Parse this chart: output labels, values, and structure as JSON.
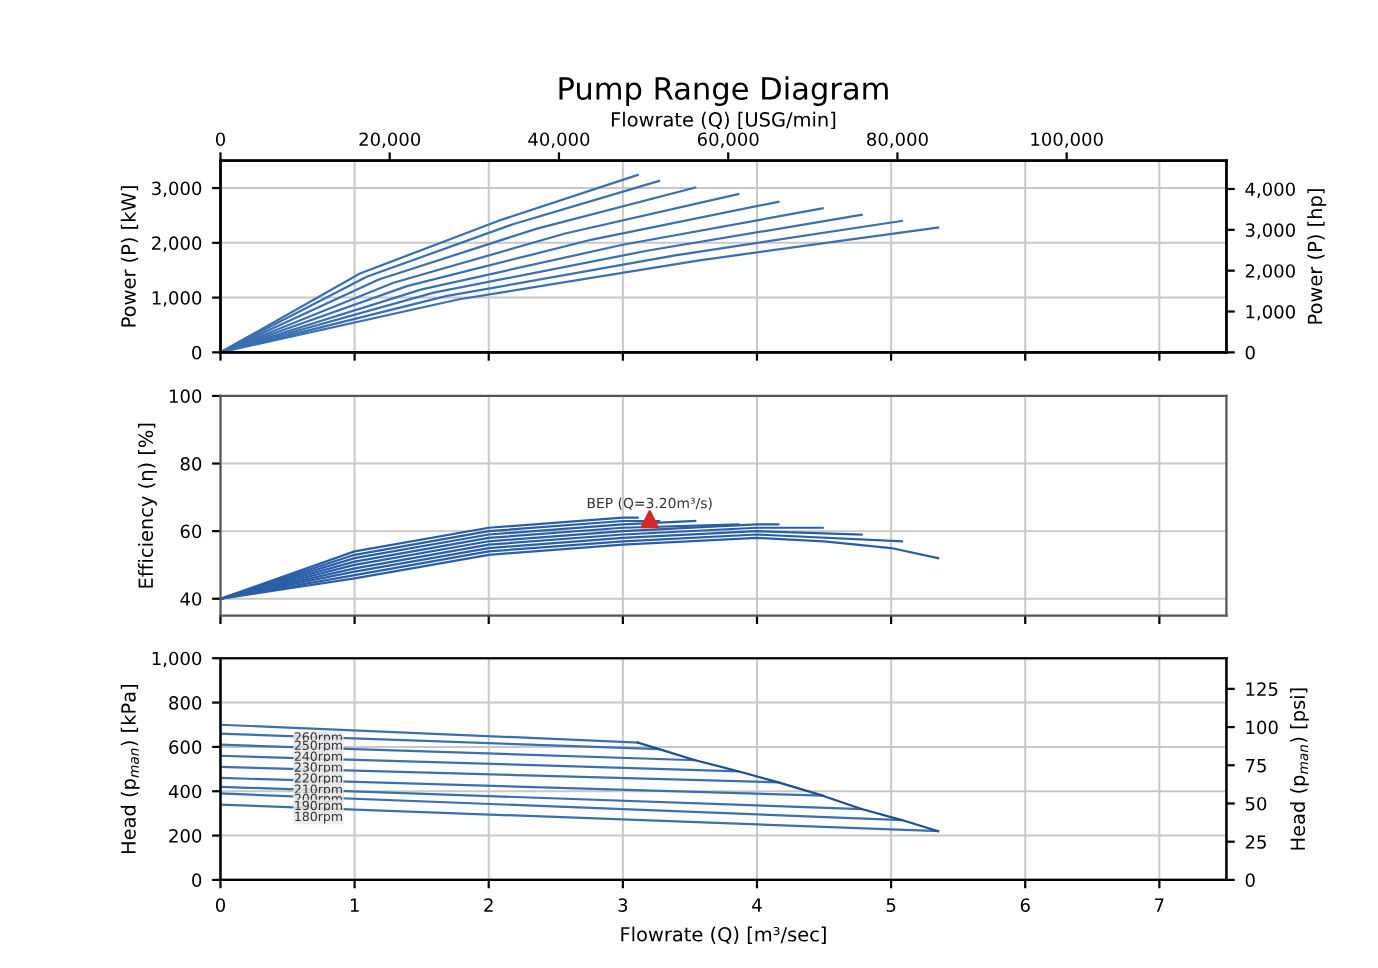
{
  "chart_data": [
    {
      "type": "line",
      "title": "Pump Range Diagram",
      "ylabel": "Power (P) [kW]",
      "y2label": "Power (P) [hp]",
      "x2label": "Flowrate (Q) [USG/min]",
      "xlim": [
        0,
        7.5
      ],
      "xticks": [
        0,
        1,
        2,
        3,
        4,
        5,
        6,
        7
      ],
      "x2lim": [
        0,
        118877
      ],
      "x2ticks": [
        0,
        {
          "value": 20000,
          "label": "20,000"
        },
        {
          "value": 40000,
          "label": "40,000"
        },
        {
          "value": 60000,
          "label": "60,000"
        },
        {
          "value": 80000,
          "label": "80,000"
        },
        {
          "value": 100000,
          "label": "100,000"
        }
      ],
      "ylim": [
        0,
        3500
      ],
      "yticks": [
        0,
        {
          "value": 1000,
          "label": "1,000"
        },
        {
          "value": 2000,
          "label": "2,000"
        },
        {
          "value": 3000,
          "label": "3,000"
        }
      ],
      "y2lim": [
        0,
        4693
      ],
      "y2ticks": [
        0,
        {
          "value": 1000,
          "label": "1,000"
        },
        {
          "value": 2000,
          "label": "2,000"
        },
        {
          "value": 3000,
          "label": "3,000"
        },
        {
          "value": 4000,
          "label": "4,000"
        }
      ],
      "grid": true,
      "tick_labels": "y",
      "marker": "none",
      "line_style": "solid",
      "series": [
        {
          "color": "#3a6fb0",
          "x": [
            0,
            1.04,
            2.07,
            3.11
          ],
          "values": [
            0,
            1440,
            2400,
            3240
          ]
        },
        {
          "color": "#3a6fb0",
          "x": [
            0,
            1.09,
            2.18,
            3.27
          ],
          "values": [
            0,
            1380,
            2340,
            3130
          ]
        },
        {
          "color": "#3a6fb0",
          "x": [
            0,
            1.18,
            2.36,
            3.54
          ],
          "values": [
            0,
            1330,
            2260,
            3010
          ]
        },
        {
          "color": "#3a6fb0",
          "x": [
            0,
            1.29,
            2.57,
            3.86
          ],
          "values": [
            0,
            1270,
            2170,
            2890
          ]
        },
        {
          "color": "#3a6fb0",
          "x": [
            0,
            1.39,
            2.77,
            4.16
          ],
          "values": [
            0,
            1210,
            2060,
            2750
          ]
        },
        {
          "color": "#3a6fb0",
          "x": [
            0,
            1.5,
            2.99,
            4.49
          ],
          "values": [
            0,
            1150,
            1960,
            2630
          ]
        },
        {
          "color": "#3a6fb0",
          "x": [
            0,
            1.59,
            3.19,
            4.78
          ],
          "values": [
            0,
            1090,
            1860,
            2510
          ]
        },
        {
          "color": "#3a6fb0",
          "x": [
            0,
            1.69,
            3.39,
            5.08
          ],
          "values": [
            0,
            1030,
            1770,
            2400
          ]
        },
        {
          "color": "#3a6fb0",
          "x": [
            0,
            1.78,
            3.57,
            5.35
          ],
          "values": [
            0,
            970,
            1680,
            2280
          ]
        }
      ]
    },
    {
      "type": "line",
      "ylabel": "Efficiency (η) [%]",
      "xlim": [
        0,
        7.5
      ],
      "xticks": [
        0,
        1,
        2,
        3,
        4,
        5,
        6,
        7
      ],
      "ylim": [
        35,
        100
      ],
      "yticks": [
        40,
        60,
        80,
        100
      ],
      "grid": true,
      "tick_labels": "y",
      "marker": "none",
      "line_style": "solid",
      "annotations": [
        "BEP (Q=3.20m³/s)"
      ],
      "series": [
        {
          "color": "#2a5fa8",
          "x": [
            0,
            1,
            2,
            3,
            3.11
          ],
          "values": [
            40,
            54,
            61,
            64,
            64
          ]
        },
        {
          "color": "#2a5fa8",
          "x": [
            0,
            1,
            2,
            3,
            3.27
          ],
          "values": [
            40,
            53,
            60,
            63,
            63
          ]
        },
        {
          "color": "#2a5fa8",
          "x": [
            0,
            1,
            2,
            3,
            3.54
          ],
          "values": [
            40,
            52,
            59,
            62,
            63
          ]
        },
        {
          "color": "#2a5fa8",
          "x": [
            0,
            1,
            2,
            3,
            3.86
          ],
          "values": [
            40,
            51,
            58,
            61,
            62
          ]
        },
        {
          "color": "#2a5fa8",
          "x": [
            0,
            1,
            2,
            3,
            4,
            4.16
          ],
          "values": [
            40,
            50,
            57,
            60,
            62,
            62
          ]
        },
        {
          "color": "#2a5fa8",
          "x": [
            0,
            1,
            2,
            3,
            4,
            4.49
          ],
          "values": [
            40,
            49,
            56,
            59,
            61,
            61
          ]
        },
        {
          "color": "#2a5fa8",
          "x": [
            0,
            1,
            2,
            3,
            4,
            4.78
          ],
          "values": [
            40,
            48,
            55,
            58,
            60,
            59
          ]
        },
        {
          "color": "#2a5fa8",
          "x": [
            0,
            1,
            2,
            3,
            4,
            5.08
          ],
          "values": [
            40,
            47,
            54,
            57,
            59,
            57
          ]
        },
        {
          "color": "#2a5fa8",
          "x": [
            0,
            1,
            2,
            3,
            4,
            4.5,
            5,
            5.35
          ],
          "values": [
            40,
            46,
            53,
            56,
            58,
            57,
            55,
            52
          ]
        },
        {
          "type": "scatter",
          "marker": "triangle",
          "color": "#d62728",
          "x": [
            3.2
          ],
          "values": [
            63.5
          ]
        }
      ]
    },
    {
      "type": "line",
      "ylabel": "Head (p$_{man}$) [kPa]",
      "y2label": "Head (p$_{man}$) [psi]",
      "xlabel": "Flowrate (Q) [m³/sec]",
      "xlim": [
        0,
        7.5
      ],
      "xticks": [
        0,
        1,
        2,
        3,
        4,
        5,
        6,
        7
      ],
      "ylim": [
        0,
        1000
      ],
      "yticks": [
        0,
        200,
        400,
        600,
        800,
        {
          "value": 1000,
          "label": "1,000"
        }
      ],
      "y2lim": [
        0,
        145.04
      ],
      "y2ticks": [
        0,
        25,
        50,
        75,
        100,
        125
      ],
      "grid": true,
      "marker": "none",
      "line_style": "solid",
      "annotations": [
        "260rpm",
        "250rpm",
        "240rpm",
        "230rpm",
        "220rpm",
        "210rpm",
        "200rpm",
        "190rpm",
        "180rpm"
      ],
      "series": [
        {
          "color": "#3a6fb0",
          "x": [
            0,
            3.11
          ],
          "values": [
            700,
            620
          ]
        },
        {
          "color": "#3a6fb0",
          "x": [
            0,
            3.27
          ],
          "values": [
            660,
            590
          ]
        },
        {
          "color": "#3a6fb0",
          "x": [
            0,
            3.54
          ],
          "values": [
            610,
            540
          ]
        },
        {
          "color": "#3a6fb0",
          "x": [
            0,
            3.86
          ],
          "values": [
            560,
            490
          ]
        },
        {
          "color": "#3a6fb0",
          "x": [
            0,
            4.16
          ],
          "values": [
            510,
            440
          ]
        },
        {
          "color": "#3a6fb0",
          "x": [
            0,
            4.49
          ],
          "values": [
            460,
            380
          ]
        },
        {
          "color": "#3a6fb0",
          "x": [
            0,
            4.78
          ],
          "values": [
            420,
            320
          ]
        },
        {
          "color": "#3a6fb0",
          "x": [
            0,
            5.08
          ],
          "values": [
            390,
            270
          ]
        },
        {
          "color": "#3a6fb0",
          "x": [
            0,
            5.35
          ],
          "values": [
            340,
            220
          ]
        },
        {
          "color": "#1f4f8f",
          "x": [
            3.11,
            3.27,
            3.54,
            3.86,
            4.16,
            4.49,
            4.78,
            5.08,
            5.35
          ],
          "values": [
            620,
            590,
            540,
            490,
            440,
            380,
            320,
            270,
            220
          ]
        }
      ]
    }
  ]
}
